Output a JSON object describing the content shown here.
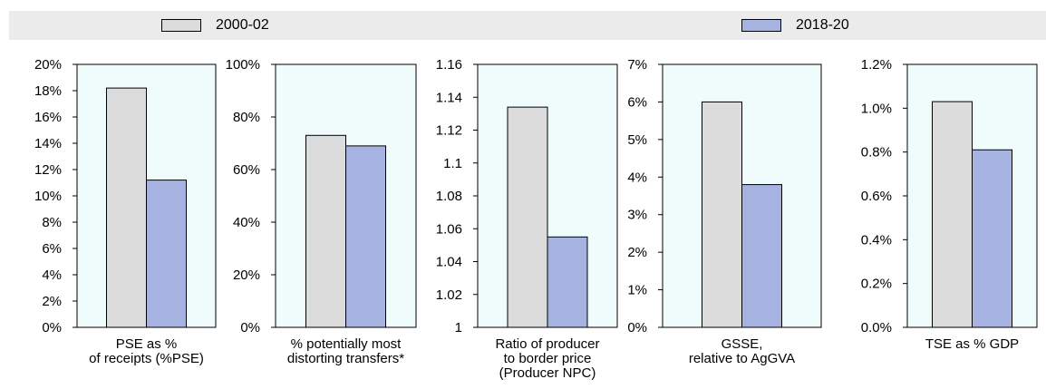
{
  "legend": {
    "items": [
      {
        "label": "2000-02",
        "color": "#dcdcdc"
      },
      {
        "label": "2018-20",
        "color": "#a6b3e0"
      }
    ]
  },
  "colors": {
    "plot_background": "#f0fcfc",
    "legend_background": "#ebebeb"
  },
  "chart_data": [
    {
      "type": "bar",
      "categories": [
        "PSE as %\nof receipts (%PSE)"
      ],
      "series": [
        {
          "name": "2000-02",
          "values": [
            18.2
          ]
        },
        {
          "name": "2018-20",
          "values": [
            11.2
          ]
        }
      ],
      "ylim": [
        0,
        20
      ],
      "yticks": [
        "0%",
        "2%",
        "4%",
        "6%",
        "8%",
        "10%",
        "12%",
        "14%",
        "16%",
        "18%",
        "20%"
      ]
    },
    {
      "type": "bar",
      "categories": [
        "% potentially most\ndistorting transfers*"
      ],
      "series": [
        {
          "name": "2000-02",
          "values": [
            73
          ]
        },
        {
          "name": "2018-20",
          "values": [
            69
          ]
        }
      ],
      "ylim": [
        0,
        100
      ],
      "yticks": [
        "0%",
        "20%",
        "40%",
        "60%",
        "80%",
        "100%"
      ]
    },
    {
      "type": "bar",
      "categories": [
        "Ratio of producer\nto border price\n(Producer NPC)"
      ],
      "series": [
        {
          "name": "2000-02",
          "values": [
            1.134
          ]
        },
        {
          "name": "2018-20",
          "values": [
            1.055
          ]
        }
      ],
      "ylim": [
        1,
        1.16
      ],
      "yticks": [
        "1",
        "1.02",
        "1.04",
        "1.06",
        "1.08",
        "1.1",
        "1.12",
        "1.14",
        "1.16"
      ]
    },
    {
      "type": "bar",
      "categories": [
        "GSSE,\nrelative to AgGVA"
      ],
      "series": [
        {
          "name": "2000-02",
          "values": [
            6.0
          ]
        },
        {
          "name": "2018-20",
          "values": [
            3.8
          ]
        }
      ],
      "ylim": [
        0,
        7
      ],
      "yticks": [
        "0%",
        "1%",
        "2%",
        "3%",
        "4%",
        "5%",
        "6%",
        "7%"
      ]
    },
    {
      "type": "bar",
      "categories": [
        "TSE as % GDP"
      ],
      "series": [
        {
          "name": "2000-02",
          "values": [
            1.03
          ]
        },
        {
          "name": "2018-20",
          "values": [
            0.81
          ]
        }
      ],
      "ylim": [
        0,
        1.2
      ],
      "yticks": [
        "0.0%",
        "0.2%",
        "0.4%",
        "0.6%",
        "0.8%",
        "1.0%",
        "1.2%"
      ]
    }
  ]
}
